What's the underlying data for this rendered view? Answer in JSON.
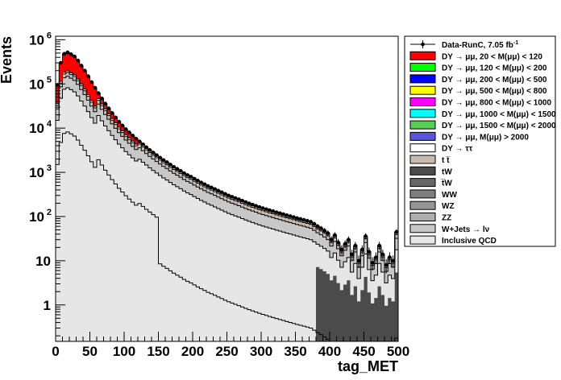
{
  "chart_data": {
    "type": "histogram-stacked-log",
    "xlabel": "tag_MET",
    "ylabel": "Events",
    "xlim": [
      0,
      500
    ],
    "ylim": [
      0.15,
      1200000
    ],
    "log_y": true,
    "bin_width": 5,
    "legend_position": "right",
    "x_ticks": [
      0,
      50,
      100,
      150,
      200,
      250,
      300,
      350,
      400,
      450,
      500
    ],
    "x_tick_labels": [
      "0",
      "50",
      "100",
      "150",
      "200",
      "250",
      "300",
      "350",
      "400",
      "450",
      "500"
    ],
    "y_ticks": [
      1,
      10,
      100,
      1000,
      10000,
      100000,
      1000000
    ],
    "y_tick_labels": [
      {
        "base": "1",
        "exp": ""
      },
      {
        "base": "10",
        "exp": ""
      },
      {
        "base": "10",
        "exp": "2"
      },
      {
        "base": "10",
        "exp": "3"
      },
      {
        "base": "10",
        "exp": "4"
      },
      {
        "base": "10",
        "exp": "5"
      },
      {
        "base": "10",
        "exp": "6"
      }
    ],
    "legend": [
      {
        "label": "Data-RunC, 7.05 fb",
        "sup": "-1",
        "color": "#000000",
        "kind": "marker"
      },
      {
        "label": "DY → μμ, 20 < M(μμ) <  120",
        "color": "#ff0000",
        "kind": "box"
      },
      {
        "label": "DY → μμ, 120 < M(μμ) <  200",
        "color": "#00ff00",
        "kind": "box"
      },
      {
        "label": "DY → μμ, 200 < M(μμ) <  500",
        "color": "#0000ff",
        "kind": "box"
      },
      {
        "label": "DY → μμ, 500 < M(μμ) <  800",
        "color": "#ffff00",
        "kind": "box"
      },
      {
        "label": "DY → μμ, 800 < M(μμ) < 1000",
        "color": "#ff00ff",
        "kind": "box"
      },
      {
        "label": "DY → μμ, 1000 < M(μμ) < 1500",
        "color": "#00ffff",
        "kind": "box"
      },
      {
        "label": "DY → μμ, 1500 < M(μμ) < 2000",
        "color": "#55d055",
        "kind": "box"
      },
      {
        "label": "DY → μμ, M(μμ) > 2000",
        "color": "#5555dd",
        "kind": "box"
      },
      {
        "label": "DY → ττ",
        "color": "#ffffff",
        "kind": "box"
      },
      {
        "label": "t t̅",
        "color": "#c8bcb0",
        "kind": "box"
      },
      {
        "label": "tW",
        "color": "#4b4b4b",
        "kind": "box"
      },
      {
        "label": "t̅W",
        "color": "#666666",
        "kind": "box"
      },
      {
        "label": "WW",
        "color": "#7e7e7e",
        "kind": "box"
      },
      {
        "label": "WZ",
        "color": "#959595",
        "kind": "box"
      },
      {
        "label": "ZZ",
        "color": "#aeaeae",
        "kind": "box"
      },
      {
        "label": "W+Jets → lν",
        "color": "#c8c8c8",
        "kind": "box"
      },
      {
        "label": "Inclusive QCD",
        "color": "#e6e6e6",
        "kind": "box"
      }
    ],
    "data_x": [
      2.5,
      7.5,
      12.5,
      17.5,
      22.5,
      27.5,
      32.5,
      37.5,
      42.5,
      47.5,
      52.5,
      57.5,
      62.5,
      67.5,
      72.5,
      77.5,
      82.5,
      87.5,
      92.5,
      97.5,
      102.5,
      107.5,
      112.5,
      117.5,
      122.5,
      127.5,
      132.5,
      137.5,
      142.5,
      147.5,
      152.5,
      157.5,
      162.5,
      167.5,
      172.5,
      177.5,
      182.5,
      187.5,
      192.5,
      197.5,
      202.5,
      207.5,
      212.5,
      217.5,
      222.5,
      227.5,
      232.5,
      237.5,
      242.5,
      247.5,
      252.5,
      257.5,
      262.5,
      267.5,
      272.5,
      277.5,
      282.5,
      287.5,
      292.5,
      297.5,
      302.5,
      307.5,
      312.5,
      317.5,
      322.5,
      327.5,
      332.5,
      337.5,
      342.5,
      347.5,
      352.5,
      357.5,
      362.5,
      367.5,
      372.5,
      377.5,
      382.5,
      387.5,
      392.5,
      397.5,
      402.5,
      407.5,
      412.5,
      417.5,
      422.5,
      427.5,
      432.5,
      437.5,
      442.5,
      447.5,
      452.5,
      457.5,
      462.5,
      467.5,
      472.5,
      477.5,
      482.5,
      487.5,
      492.5,
      497.5
    ],
    "data_y": [
      95000,
      300000,
      480000,
      520000,
      470000,
      420000,
      340000,
      260000,
      200000,
      150000,
      110000,
      82000,
      62000,
      47000,
      36000,
      28000,
      22000,
      17500,
      14000,
      11500,
      9500,
      8000,
      6800,
      5800,
      5000,
      4300,
      3700,
      3200,
      2800,
      2450,
      2150,
      1900,
      1700,
      1500,
      1330,
      1200,
      1080,
      960,
      870,
      800,
      720,
      650,
      590,
      540,
      490,
      455,
      420,
      385,
      355,
      325,
      300,
      280,
      262,
      245,
      228,
      212,
      198,
      186,
      175,
      164,
      155,
      147,
      139,
      132,
      125,
      119,
      113,
      107,
      102,
      97,
      92,
      88,
      84,
      80,
      76,
      68,
      60,
      54,
      48,
      42,
      30,
      38,
      26,
      18,
      24,
      30,
      14,
      22,
      10,
      18,
      36,
      16,
      9,
      12,
      22,
      14,
      8,
      12,
      10,
      45
    ]
  }
}
